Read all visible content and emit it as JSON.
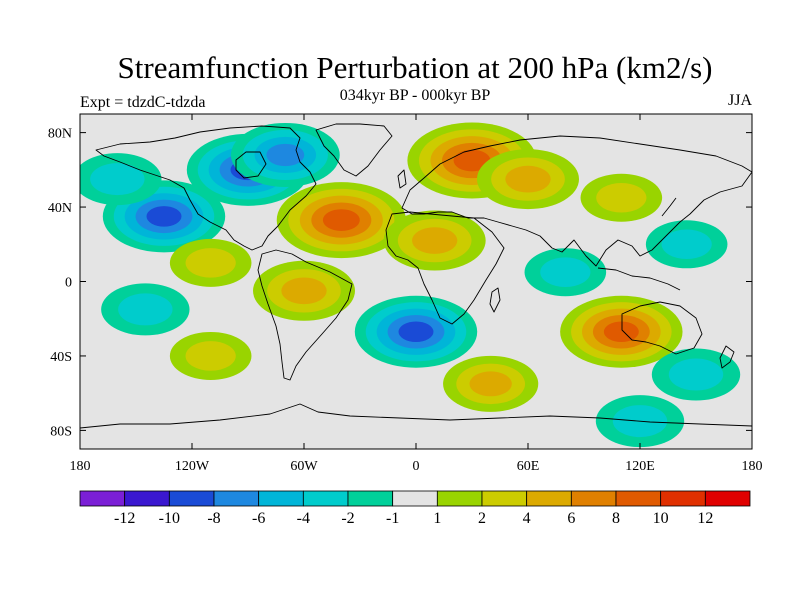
{
  "title": "Streamfunction Perturbation at 200 hPa (km2/s)",
  "subtitle": "034kyr BP - 000kyr BP",
  "left_label": "Expt = tdzdC-tdzda",
  "right_label": "JJA",
  "lon_ticks": [
    {
      "value": -180,
      "label": "180"
    },
    {
      "value": -120,
      "label": "120W"
    },
    {
      "value": -60,
      "label": "60W"
    },
    {
      "value": 0,
      "label": "0"
    },
    {
      "value": 60,
      "label": "60E"
    },
    {
      "value": 120,
      "label": "120E"
    },
    {
      "value": 180,
      "label": "180"
    }
  ],
  "lat_ticks": [
    {
      "value": 80,
      "label": "80N"
    },
    {
      "value": 40,
      "label": "40N"
    },
    {
      "value": 0,
      "label": "0"
    },
    {
      "value": -40,
      "label": "40S"
    },
    {
      "value": -80,
      "label": "80S"
    }
  ],
  "colorbar": {
    "colors": [
      "#7b1fd6",
      "#3a17d0",
      "#1a4bd6",
      "#1e88e0",
      "#00b5d8",
      "#00cccc",
      "#00d09a",
      "#e4e4e4",
      "#99d400",
      "#cccc00",
      "#dcaa00",
      "#e08000",
      "#e05a00",
      "#e03000",
      "#e00000"
    ],
    "levels": [
      "-12",
      "-10",
      "-8",
      "-6",
      "-4",
      "-2",
      "-1",
      "1",
      "2",
      "4",
      "6",
      "8",
      "10",
      "12"
    ]
  },
  "anomalies": [
    {
      "region": "Western Canada / Greenland",
      "lon": -90,
      "lat": 60,
      "value": -8
    },
    {
      "region": "Northeast Pacific",
      "lon": -135,
      "lat": 35,
      "value": -8
    },
    {
      "region": "Labrador Sea",
      "lon": -70,
      "lat": 68,
      "value": -6
    },
    {
      "region": "North Pacific west",
      "lon": -160,
      "lat": 55,
      "value": -3
    },
    {
      "region": "North Atlantic",
      "lon": -40,
      "lat": 33,
      "value": 9
    },
    {
      "region": "Northern Europe / Scandinavia",
      "lon": 30,
      "lat": 65,
      "value": 9
    },
    {
      "region": "Central Asia",
      "lon": 60,
      "lat": 55,
      "value": 5
    },
    {
      "region": "North Africa / Middle East",
      "lon": 10,
      "lat": 22,
      "value": 5
    },
    {
      "region": "Tropical South America",
      "lon": -60,
      "lat": -5,
      "value": 5
    },
    {
      "region": "East Pacific subtropics",
      "lon": -110,
      "lat": 10,
      "value": 2
    },
    {
      "region": "South Atlantic",
      "lon": 0,
      "lat": -27,
      "value": -8
    },
    {
      "region": "Southeast Pacific",
      "lon": -145,
      "lat": -15,
      "value": -3
    },
    {
      "region": "South Pacific",
      "lon": -110,
      "lat": -40,
      "value": 2
    },
    {
      "region": "Indian Ocean",
      "lon": 40,
      "lat": -55,
      "value": 4
    },
    {
      "region": "Australia",
      "lon": 110,
      "lat": -27,
      "value": 8
    },
    {
      "region": "Tasman Sea",
      "lon": 150,
      "lat": -50,
      "value": -3
    },
    {
      "region": "Equatorial Indian Ocean",
      "lon": 80,
      "lat": 5,
      "value": -2
    },
    {
      "region": "Tropical west Pacific",
      "lon": 145,
      "lat": 20,
      "value": -2
    },
    {
      "region": "East Asia",
      "lon": 110,
      "lat": 45,
      "value": 2
    },
    {
      "region": "Southern Ocean",
      "lon": 120,
      "lat": -75,
      "value": -3
    }
  ]
}
